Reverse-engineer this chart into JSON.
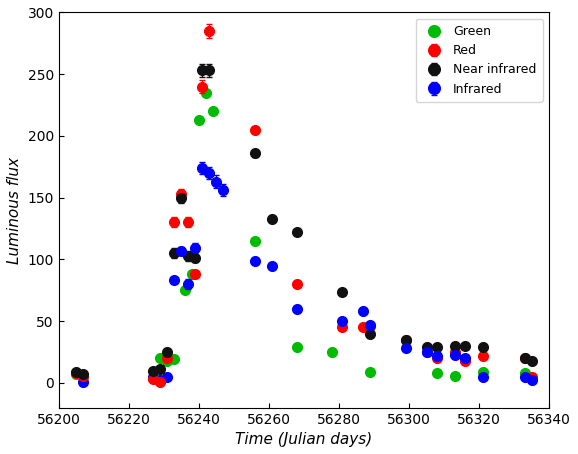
{
  "title": "",
  "xlabel": "Time (Julian days)",
  "ylabel": "Luminous flux",
  "xlim": [
    56200,
    56340
  ],
  "ylim": [
    -20,
    300
  ],
  "yticks": [
    0,
    50,
    100,
    150,
    200,
    250,
    300
  ],
  "xticks": [
    56200,
    56220,
    56240,
    56260,
    56280,
    56300,
    56320,
    56340
  ],
  "green": {
    "x": [
      56205,
      56207,
      56229,
      56231,
      56233,
      56236,
      56238,
      56240,
      56242,
      56244,
      56256,
      56268,
      56278,
      56289,
      56308,
      56313,
      56321,
      56333
    ],
    "y": [
      7,
      5,
      20,
      18,
      19,
      75,
      88,
      213,
      235,
      220,
      115,
      29,
      25,
      9,
      8,
      6,
      9,
      8
    ],
    "yerr": [
      null,
      null,
      null,
      null,
      null,
      null,
      null,
      null,
      null,
      null,
      null,
      null,
      null,
      null,
      null,
      null,
      null,
      null
    ]
  },
  "red": {
    "x": [
      56205,
      56207,
      56227,
      56229,
      56231,
      56233,
      56235,
      56237,
      56239,
      56241,
      56243,
      56256,
      56268,
      56281,
      56287,
      56289,
      56299,
      56305,
      56308,
      56313,
      56316,
      56321,
      56333,
      56335
    ],
    "y": [
      8,
      6,
      3,
      1,
      20,
      130,
      153,
      130,
      88,
      240,
      285,
      205,
      80,
      45,
      45,
      46,
      35,
      25,
      20,
      25,
      18,
      22,
      20,
      5
    ],
    "yerr": [
      2,
      2,
      2,
      2,
      2,
      4,
      4,
      4,
      3,
      5,
      6,
      null,
      null,
      null,
      null,
      null,
      null,
      null,
      null,
      null,
      null,
      null,
      null,
      null
    ]
  },
  "near_infrared": {
    "x": [
      56205,
      56207,
      56227,
      56229,
      56231,
      56233,
      56235,
      56237,
      56239,
      56241,
      56243,
      56256,
      56261,
      56268,
      56281,
      56289,
      56299,
      56305,
      56308,
      56313,
      56316,
      56321,
      56333,
      56335
    ],
    "y": [
      9,
      7,
      10,
      11,
      25,
      105,
      150,
      103,
      101,
      253,
      253,
      186,
      133,
      122,
      74,
      40,
      35,
      29,
      29,
      30,
      30,
      29,
      20,
      18
    ],
    "yerr": [
      2,
      2,
      2,
      2,
      2,
      4,
      4,
      4,
      3,
      5,
      5,
      3,
      null,
      null,
      null,
      null,
      null,
      null,
      null,
      null,
      null,
      null,
      null,
      null
    ]
  },
  "infrared": {
    "x": [
      56207,
      56227,
      56229,
      56231,
      56233,
      56235,
      56237,
      56239,
      56241,
      56243,
      56245,
      56247,
      56256,
      56261,
      56268,
      56281,
      56287,
      56289,
      56299,
      56305,
      56308,
      56313,
      56316,
      56321,
      56333,
      56335
    ],
    "y": [
      1,
      5,
      2,
      5,
      83,
      107,
      80,
      109,
      174,
      170,
      163,
      156,
      99,
      95,
      60,
      50,
      58,
      47,
      28,
      25,
      22,
      23,
      20,
      5,
      5,
      2
    ],
    "yerr": [
      null,
      null,
      null,
      null,
      null,
      3,
      4,
      4,
      5,
      5,
      5,
      5,
      null,
      null,
      null,
      null,
      null,
      null,
      null,
      null,
      null,
      null,
      null,
      null,
      null,
      null
    ]
  },
  "marker_size": 7,
  "capsize": 2,
  "elinewidth": 1,
  "figsize": [
    5.78,
    4.54
  ],
  "dpi": 100
}
